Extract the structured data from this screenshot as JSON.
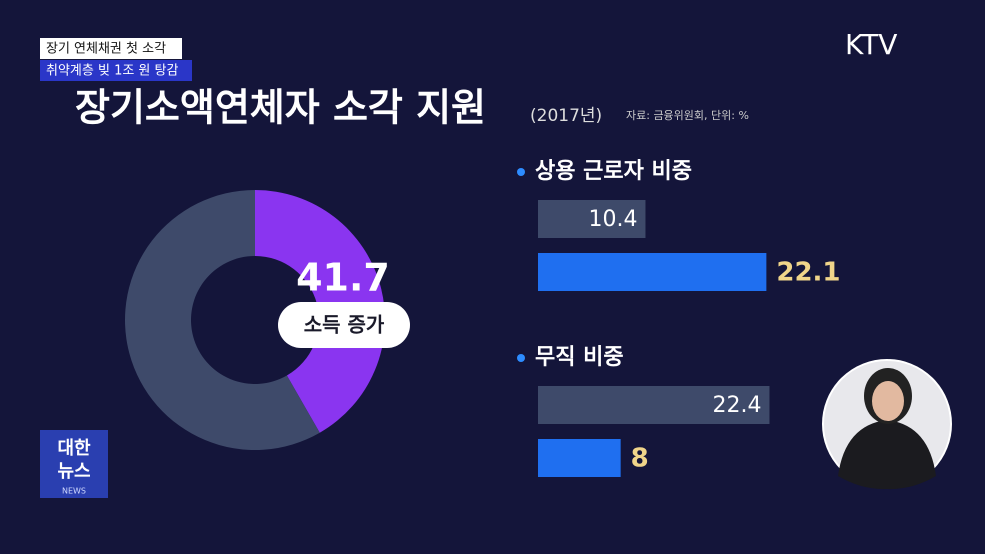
{
  "caption": {
    "line1": "장기 연체채권 첫 소각",
    "line2": "취약계층 빚 1조 원 탕감"
  },
  "logo": "KTV",
  "news_logo": {
    "line1": "대한",
    "line2": "뉴스",
    "line3": "NEWS"
  },
  "chart_data": [
    {
      "type": "pie",
      "title": "장기소액연체자 소각 지원",
      "subtitle": "(2017년)",
      "source": "자료: 금융위원회, 단위: %",
      "labels": [
        "소득 증가",
        null
      ],
      "values": [
        41.7,
        58.3
      ],
      "colors": [
        "#8a35f0",
        "#3e4a6a"
      ]
    },
    {
      "type": "bar",
      "orientation": "horizontal",
      "categories": [
        "상용 근로자 비중",
        "무직 비중"
      ],
      "series": [
        {
          "color": "#3e4a6a",
          "values": [
            10.4,
            22.4
          ]
        },
        {
          "color": "#1f6ff0",
          "values": [
            22.1,
            8
          ]
        }
      ],
      "xlim": [
        0,
        30
      ]
    }
  ]
}
